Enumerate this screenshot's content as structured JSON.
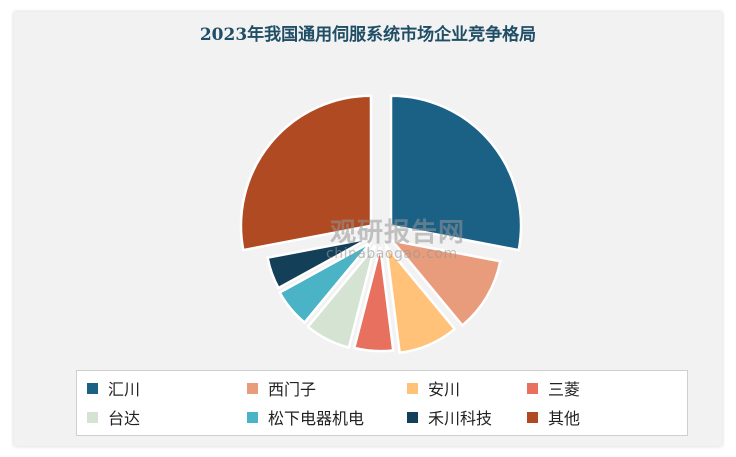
{
  "chart_data": {
    "type": "pie",
    "title": "2023年我国通用伺服系统市场企业竞争格局",
    "slices": [
      {
        "name": "汇川",
        "value": 28,
        "color": "#1b6186"
      },
      {
        "name": "西门子",
        "value": 11,
        "color": "#e89c7c"
      },
      {
        "name": "安川",
        "value": 9,
        "color": "#ffc278"
      },
      {
        "name": "三菱",
        "value": 6,
        "color": "#e8705f"
      },
      {
        "name": "台达",
        "value": 7,
        "color": "#d5e3d3"
      },
      {
        "name": "松下电器机电",
        "value": 6,
        "color": "#4ab3c5"
      },
      {
        "name": "禾川科技",
        "value": 5,
        "color": "#133f58"
      },
      {
        "name": "其他",
        "value": 28,
        "color": "#b04a22"
      }
    ],
    "legend_position": "bottom"
  },
  "watermark": {
    "text": "观研报告网",
    "url": "chinabaogao.com"
  }
}
